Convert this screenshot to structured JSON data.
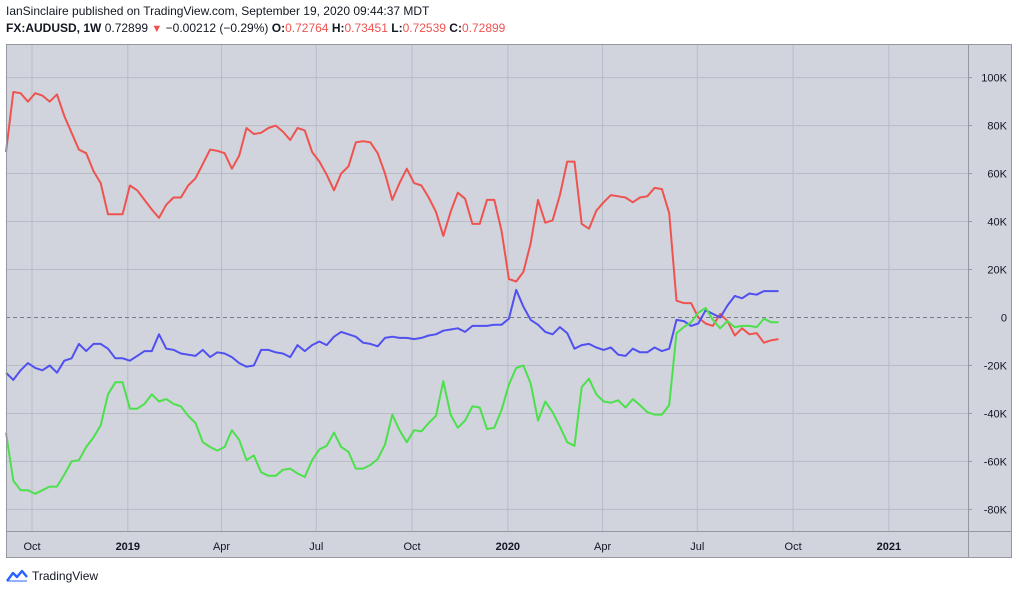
{
  "header": {
    "publisher_line": "IanSinclaire published on TradingView.com, September 19, 2020 09:44:37 MDT",
    "symbol": "FX:AUDUSD, 1W",
    "last": "0.72899",
    "change": "−0.00212 (−0.29%)",
    "o_label": "O:",
    "o_value": "0.72764",
    "h_label": "H:",
    "h_value": "0.73451",
    "l_label": "L:",
    "l_value": "0.72539",
    "c_label": "C:",
    "c_value": "0.72899"
  },
  "footer": {
    "brand": "TradingView"
  },
  "colors": {
    "red": "#ef5350",
    "blue": "#5050f0",
    "green": "#4ce04c",
    "plot_bg": "#d1d4dc",
    "grid": "#b8bcc8"
  },
  "chart_data": {
    "type": "line",
    "x_axis": {
      "ticks": [
        {
          "label": "Oct",
          "date": "2018-10-01",
          "bold": false
        },
        {
          "label": "2019",
          "date": "2019-01-01",
          "bold": true
        },
        {
          "label": "Apr",
          "date": "2019-04-01",
          "bold": false
        },
        {
          "label": "Jul",
          "date": "2019-07-01",
          "bold": false
        },
        {
          "label": "Oct",
          "date": "2019-10-01",
          "bold": false
        },
        {
          "label": "2020",
          "date": "2020-01-01",
          "bold": true
        },
        {
          "label": "Apr",
          "date": "2020-04-01",
          "bold": false
        },
        {
          "label": "Jul",
          "date": "2020-07-01",
          "bold": false
        },
        {
          "label": "Oct",
          "date": "2020-10-01",
          "bold": false
        },
        {
          "label": "2021",
          "date": "2021-01-01",
          "bold": true
        }
      ]
    },
    "y_axis": {
      "ticks": [
        {
          "label": "100K",
          "value": 100000
        },
        {
          "label": "80K",
          "value": 80000
        },
        {
          "label": "60K",
          "value": 60000
        },
        {
          "label": "40K",
          "value": 40000
        },
        {
          "label": "20K",
          "value": 20000
        },
        {
          "label": "0",
          "value": 0
        },
        {
          "label": "-20K",
          "value": -20000
        },
        {
          "label": "-40K",
          "value": -40000
        },
        {
          "label": "-60K",
          "value": -60000
        },
        {
          "label": "-80K",
          "value": -80000
        }
      ],
      "ylim": [
        -89000,
        114000
      ],
      "zero_line": "dashed"
    },
    "xlim": [
      "2018-09-06",
      "2021-03-18"
    ],
    "grid": true,
    "series": [
      {
        "color": "#ef5350",
        "x": [
          "2018-09-06",
          "2018-09-13",
          "2018-09-20",
          "2018-09-27",
          "2018-10-04",
          "2018-10-11",
          "2018-10-18",
          "2018-10-25",
          "2018-11-01",
          "2018-11-08",
          "2018-11-15",
          "2018-11-22",
          "2018-11-29",
          "2018-12-06",
          "2018-12-13",
          "2018-12-20",
          "2018-12-27",
          "2019-01-03",
          "2019-01-10",
          "2019-01-17",
          "2019-01-24",
          "2019-01-31",
          "2019-02-07",
          "2019-02-14",
          "2019-02-21",
          "2019-02-28",
          "2019-03-07",
          "2019-03-14",
          "2019-03-21",
          "2019-03-28",
          "2019-04-04",
          "2019-04-11",
          "2019-04-18",
          "2019-04-25",
          "2019-05-02",
          "2019-05-09",
          "2019-05-16",
          "2019-05-23",
          "2019-05-30",
          "2019-06-06",
          "2019-06-13",
          "2019-06-20",
          "2019-06-27",
          "2019-07-04",
          "2019-07-11",
          "2019-07-18",
          "2019-07-25",
          "2019-08-01",
          "2019-08-08",
          "2019-08-15",
          "2019-08-22",
          "2019-08-29",
          "2019-09-05",
          "2019-09-12",
          "2019-09-19",
          "2019-09-26",
          "2019-10-03",
          "2019-10-10",
          "2019-10-17",
          "2019-10-24",
          "2019-10-31",
          "2019-11-07",
          "2019-11-14",
          "2019-11-21",
          "2019-11-28",
          "2019-12-05",
          "2019-12-12",
          "2019-12-19",
          "2019-12-26",
          "2020-01-02",
          "2020-01-09",
          "2020-01-16",
          "2020-01-23",
          "2020-01-30",
          "2020-02-06",
          "2020-02-13",
          "2020-02-20",
          "2020-02-27",
          "2020-03-05",
          "2020-03-12",
          "2020-03-19",
          "2020-03-26",
          "2020-04-02",
          "2020-04-09",
          "2020-04-16",
          "2020-04-23",
          "2020-04-30",
          "2020-05-07",
          "2020-05-14",
          "2020-05-21",
          "2020-05-28",
          "2020-06-04",
          "2020-06-11",
          "2020-06-18",
          "2020-06-25",
          "2020-07-02",
          "2020-07-09",
          "2020-07-16",
          "2020-07-23",
          "2020-07-30",
          "2020-08-06",
          "2020-08-13",
          "2020-08-20",
          "2020-08-27",
          "2020-09-03",
          "2020-09-10",
          "2020-09-17"
        ],
        "values": [
          69000,
          94000,
          93500,
          90000,
          93500,
          92500,
          90000,
          93000,
          84000,
          77000,
          70000,
          68500,
          61000,
          56000,
          43000,
          43000,
          43000,
          55000,
          53000,
          49000,
          45000,
          41500,
          47000,
          50000,
          50000,
          55000,
          58000,
          64000,
          70000,
          69500,
          68500,
          62000,
          67500,
          79000,
          76500,
          77000,
          79000,
          80000,
          77500,
          74000,
          79000,
          78000,
          69000,
          65000,
          59500,
          53000,
          60000,
          63000,
          73000,
          73500,
          73000,
          68500,
          60000,
          49000,
          56000,
          62000,
          56000,
          55000,
          50000,
          44000,
          34000,
          44000,
          52000,
          49500,
          39000,
          39000,
          49000,
          49000,
          36000,
          16000,
          15000,
          19000,
          31000,
          49000,
          39500,
          40500,
          51000,
          65000,
          65000,
          39000,
          37000,
          44500,
          48000,
          51000,
          50500,
          50000,
          48000,
          50000,
          50500,
          54000,
          53500,
          43500,
          7000,
          6000,
          6000,
          0,
          -2500,
          -3500,
          1500,
          -1500,
          -7500,
          -4500,
          -7000,
          -6500,
          -10500,
          -9500,
          -9000
        ]
      },
      {
        "color": "#5050f0",
        "x": [
          "2018-09-06",
          "2018-09-13",
          "2018-09-20",
          "2018-09-27",
          "2018-10-04",
          "2018-10-11",
          "2018-10-18",
          "2018-10-25",
          "2018-11-01",
          "2018-11-08",
          "2018-11-15",
          "2018-11-22",
          "2018-11-29",
          "2018-12-06",
          "2018-12-13",
          "2018-12-20",
          "2018-12-27",
          "2019-01-03",
          "2019-01-10",
          "2019-01-17",
          "2019-01-24",
          "2019-01-31",
          "2019-02-07",
          "2019-02-14",
          "2019-02-21",
          "2019-02-28",
          "2019-03-07",
          "2019-03-14",
          "2019-03-21",
          "2019-03-28",
          "2019-04-04",
          "2019-04-11",
          "2019-04-18",
          "2019-04-25",
          "2019-05-02",
          "2019-05-09",
          "2019-05-16",
          "2019-05-23",
          "2019-05-30",
          "2019-06-06",
          "2019-06-13",
          "2019-06-20",
          "2019-06-27",
          "2019-07-04",
          "2019-07-11",
          "2019-07-18",
          "2019-07-25",
          "2019-08-01",
          "2019-08-08",
          "2019-08-15",
          "2019-08-22",
          "2019-08-29",
          "2019-09-05",
          "2019-09-12",
          "2019-09-19",
          "2019-09-26",
          "2019-10-03",
          "2019-10-10",
          "2019-10-17",
          "2019-10-24",
          "2019-10-31",
          "2019-11-07",
          "2019-11-14",
          "2019-11-21",
          "2019-11-28",
          "2019-12-05",
          "2019-12-12",
          "2019-12-19",
          "2019-12-26",
          "2020-01-02",
          "2020-01-09",
          "2020-01-16",
          "2020-01-23",
          "2020-01-30",
          "2020-02-06",
          "2020-02-13",
          "2020-02-20",
          "2020-02-27",
          "2020-03-05",
          "2020-03-12",
          "2020-03-19",
          "2020-03-26",
          "2020-04-02",
          "2020-04-09",
          "2020-04-16",
          "2020-04-23",
          "2020-04-30",
          "2020-05-07",
          "2020-05-14",
          "2020-05-21",
          "2020-05-28",
          "2020-06-04",
          "2020-06-11",
          "2020-06-18",
          "2020-06-25",
          "2020-07-02",
          "2020-07-09",
          "2020-07-16",
          "2020-07-23",
          "2020-07-30",
          "2020-08-06",
          "2020-08-13",
          "2020-08-20",
          "2020-08-27",
          "2020-09-03",
          "2020-09-10",
          "2020-09-17"
        ],
        "values": [
          -23000,
          -26000,
          -22000,
          -19000,
          -21000,
          -22000,
          -20000,
          -23000,
          -18000,
          -17000,
          -11000,
          -14000,
          -11000,
          -11000,
          -13000,
          -17000,
          -17000,
          -18000,
          -16000,
          -14000,
          -14000,
          -7000,
          -13000,
          -13500,
          -15000,
          -15500,
          -16000,
          -13500,
          -16500,
          -14500,
          -15000,
          -16500,
          -19000,
          -20500,
          -20000,
          -13500,
          -13500,
          -14500,
          -15000,
          -16500,
          -11500,
          -14000,
          -11500,
          -10000,
          -11500,
          -8000,
          -6000,
          -7000,
          -8000,
          -10500,
          -11000,
          -12000,
          -8500,
          -8000,
          -8500,
          -8500,
          -9000,
          -8500,
          -7500,
          -7000,
          -5500,
          -5000,
          -4500,
          -6000,
          -3500,
          -3500,
          -3500,
          -3000,
          -3000,
          -500,
          11500,
          4500,
          -1000,
          -3000,
          -6000,
          -7000,
          -4000,
          -6500,
          -13000,
          -11500,
          -11000,
          -12500,
          -13500,
          -12500,
          -15500,
          -16000,
          -13000,
          -14500,
          -14500,
          -12500,
          -14000,
          -13000,
          -1000,
          -1500,
          -3500,
          -2500,
          3000,
          1500,
          0,
          5000,
          9000,
          8000,
          10000,
          9500,
          11000,
          11000,
          11000
        ]
      },
      {
        "color": "#4ce04c",
        "x": [
          "2018-09-06",
          "2018-09-13",
          "2018-09-20",
          "2018-09-27",
          "2018-10-04",
          "2018-10-11",
          "2018-10-18",
          "2018-10-25",
          "2018-11-01",
          "2018-11-08",
          "2018-11-15",
          "2018-11-22",
          "2018-11-29",
          "2018-12-06",
          "2018-12-13",
          "2018-12-20",
          "2018-12-27",
          "2019-01-03",
          "2019-01-10",
          "2019-01-17",
          "2019-01-24",
          "2019-01-31",
          "2019-02-07",
          "2019-02-14",
          "2019-02-21",
          "2019-02-28",
          "2019-03-07",
          "2019-03-14",
          "2019-03-21",
          "2019-03-28",
          "2019-04-04",
          "2019-04-11",
          "2019-04-18",
          "2019-04-25",
          "2019-05-02",
          "2019-05-09",
          "2019-05-16",
          "2019-05-23",
          "2019-05-30",
          "2019-06-06",
          "2019-06-13",
          "2019-06-20",
          "2019-06-27",
          "2019-07-04",
          "2019-07-11",
          "2019-07-18",
          "2019-07-25",
          "2019-08-01",
          "2019-08-08",
          "2019-08-15",
          "2019-08-22",
          "2019-08-29",
          "2019-09-05",
          "2019-09-12",
          "2019-09-19",
          "2019-09-26",
          "2019-10-03",
          "2019-10-10",
          "2019-10-17",
          "2019-10-24",
          "2019-10-31",
          "2019-11-07",
          "2019-11-14",
          "2019-11-21",
          "2019-11-28",
          "2019-12-05",
          "2019-12-12",
          "2019-12-19",
          "2019-12-26",
          "2020-01-02",
          "2020-01-09",
          "2020-01-16",
          "2020-01-23",
          "2020-01-30",
          "2020-02-06",
          "2020-02-13",
          "2020-02-20",
          "2020-02-27",
          "2020-03-05",
          "2020-03-12",
          "2020-03-19",
          "2020-03-26",
          "2020-04-02",
          "2020-04-09",
          "2020-04-16",
          "2020-04-23",
          "2020-04-30",
          "2020-05-07",
          "2020-05-14",
          "2020-05-21",
          "2020-05-28",
          "2020-06-04",
          "2020-06-11",
          "2020-06-18",
          "2020-06-25",
          "2020-07-02",
          "2020-07-09",
          "2020-07-16",
          "2020-07-23",
          "2020-07-30",
          "2020-08-06",
          "2020-08-13",
          "2020-08-20",
          "2020-08-27",
          "2020-09-03",
          "2020-09-10",
          "2020-09-17"
        ],
        "values": [
          -48000,
          -68000,
          -72000,
          -72000,
          -73500,
          -72000,
          -70500,
          -70500,
          -65500,
          -60000,
          -59500,
          -54000,
          -50000,
          -45000,
          -32000,
          -27000,
          -27000,
          -38000,
          -38000,
          -36000,
          -32000,
          -35000,
          -34000,
          -36000,
          -37000,
          -41000,
          -44000,
          -52000,
          -54000,
          -55500,
          -54000,
          -47000,
          -51000,
          -59500,
          -57500,
          -64500,
          -66000,
          -66000,
          -63500,
          -63000,
          -65000,
          -66500,
          -59500,
          -55000,
          -53500,
          -48000,
          -54000,
          -56000,
          -63000,
          -63000,
          -61500,
          -59000,
          -53000,
          -40500,
          -47000,
          -52000,
          -47000,
          -47500,
          -44000,
          -41000,
          -26500,
          -40500,
          -46000,
          -43000,
          -37000,
          -37500,
          -46500,
          -46000,
          -38500,
          -28000,
          -21000,
          -20000,
          -27500,
          -43000,
          -35000,
          -39500,
          -45500,
          -52000,
          -53500,
          -29000,
          -25500,
          -32000,
          -35000,
          -35500,
          -34500,
          -37500,
          -34000,
          -36500,
          -39500,
          -40500,
          -40500,
          -36500,
          -6500,
          -4000,
          -2000,
          2000,
          4000,
          -1000,
          -4500,
          -1500,
          -4000,
          -3500,
          -3500,
          -4000,
          -500,
          -2000,
          -2000
        ]
      }
    ]
  }
}
